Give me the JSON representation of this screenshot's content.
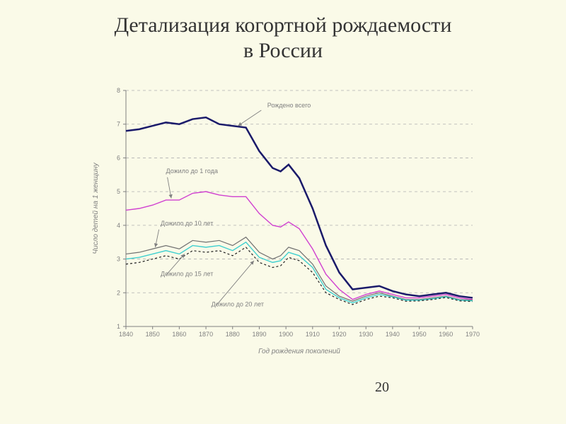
{
  "title_line1": "Детализация когортной рождаемости",
  "title_line2": "в России",
  "page_number": "20",
  "chart": {
    "type": "line",
    "background_color": "#fafae8",
    "plot_bg": "#fafae8",
    "grid_color": "#b0b0b0",
    "axis_color": "#808080",
    "text_color": "#808080",
    "tick_fontsize": 9,
    "label_fontsize": 10,
    "annot_fontsize": 9,
    "x_axis_label": "Год рождения поколений",
    "y_axis_label": "Число детей на 1 женщину",
    "xlim": [
      1840,
      1970
    ],
    "ylim": [
      1,
      8
    ],
    "xticks": [
      1840,
      1850,
      1860,
      1870,
      1880,
      1890,
      1900,
      1910,
      1920,
      1930,
      1940,
      1950,
      1960,
      1970
    ],
    "yticks": [
      1,
      2,
      3,
      4,
      5,
      6,
      7,
      8
    ],
    "series": [
      {
        "name": "Рождено всего",
        "color": "#1a1a6a",
        "width": 2.5,
        "dash": "none",
        "points": [
          [
            1840,
            6.8
          ],
          [
            1845,
            6.85
          ],
          [
            1850,
            6.95
          ],
          [
            1855,
            7.05
          ],
          [
            1860,
            7.0
          ],
          [
            1865,
            7.15
          ],
          [
            1870,
            7.2
          ],
          [
            1875,
            7.0
          ],
          [
            1880,
            6.95
          ],
          [
            1885,
            6.9
          ],
          [
            1890,
            6.2
          ],
          [
            1895,
            5.7
          ],
          [
            1898,
            5.6
          ],
          [
            1901,
            5.8
          ],
          [
            1905,
            5.4
          ],
          [
            1910,
            4.5
          ],
          [
            1915,
            3.4
          ],
          [
            1920,
            2.6
          ],
          [
            1925,
            2.1
          ],
          [
            1930,
            2.15
          ],
          [
            1935,
            2.2
          ],
          [
            1940,
            2.05
          ],
          [
            1945,
            1.95
          ],
          [
            1950,
            1.9
          ],
          [
            1955,
            1.95
          ],
          [
            1960,
            2.0
          ],
          [
            1965,
            1.9
          ],
          [
            1970,
            1.85
          ]
        ]
      },
      {
        "name": "Дожило до 1 года",
        "color": "#d040d0",
        "width": 1.4,
        "dash": "none",
        "points": [
          [
            1840,
            4.45
          ],
          [
            1845,
            4.5
          ],
          [
            1850,
            4.6
          ],
          [
            1855,
            4.75
          ],
          [
            1860,
            4.75
          ],
          [
            1865,
            4.95
          ],
          [
            1870,
            5.0
          ],
          [
            1875,
            4.9
          ],
          [
            1880,
            4.85
          ],
          [
            1885,
            4.85
          ],
          [
            1890,
            4.35
          ],
          [
            1895,
            4.0
          ],
          [
            1898,
            3.95
          ],
          [
            1901,
            4.1
          ],
          [
            1905,
            3.9
          ],
          [
            1910,
            3.3
          ],
          [
            1915,
            2.55
          ],
          [
            1920,
            2.1
          ],
          [
            1925,
            1.8
          ],
          [
            1930,
            1.95
          ],
          [
            1935,
            2.05
          ],
          [
            1940,
            1.95
          ],
          [
            1945,
            1.85
          ],
          [
            1950,
            1.85
          ],
          [
            1955,
            1.9
          ],
          [
            1960,
            1.95
          ],
          [
            1965,
            1.85
          ],
          [
            1970,
            1.8
          ]
        ]
      },
      {
        "name": "Дожило до 10 лет",
        "color": "#707070",
        "width": 1.2,
        "dash": "none",
        "points": [
          [
            1840,
            3.15
          ],
          [
            1845,
            3.2
          ],
          [
            1850,
            3.3
          ],
          [
            1855,
            3.4
          ],
          [
            1860,
            3.3
          ],
          [
            1865,
            3.55
          ],
          [
            1870,
            3.5
          ],
          [
            1875,
            3.55
          ],
          [
            1880,
            3.4
          ],
          [
            1885,
            3.65
          ],
          [
            1890,
            3.2
          ],
          [
            1895,
            3.0
          ],
          [
            1898,
            3.1
          ],
          [
            1901,
            3.35
          ],
          [
            1905,
            3.25
          ],
          [
            1910,
            2.85
          ],
          [
            1915,
            2.2
          ],
          [
            1920,
            1.9
          ],
          [
            1925,
            1.75
          ],
          [
            1930,
            1.9
          ],
          [
            1935,
            2.0
          ],
          [
            1940,
            1.9
          ],
          [
            1945,
            1.8
          ],
          [
            1950,
            1.8
          ],
          [
            1955,
            1.85
          ],
          [
            1960,
            1.9
          ],
          [
            1965,
            1.8
          ],
          [
            1970,
            1.78
          ]
        ]
      },
      {
        "name": "Дожило до 15 лет",
        "color": "#40d0d0",
        "width": 1.4,
        "dash": "none",
        "points": [
          [
            1840,
            3.0
          ],
          [
            1845,
            3.05
          ],
          [
            1850,
            3.15
          ],
          [
            1855,
            3.25
          ],
          [
            1860,
            3.15
          ],
          [
            1865,
            3.4
          ],
          [
            1870,
            3.35
          ],
          [
            1875,
            3.4
          ],
          [
            1880,
            3.25
          ],
          [
            1885,
            3.5
          ],
          [
            1890,
            3.05
          ],
          [
            1895,
            2.9
          ],
          [
            1898,
            2.95
          ],
          [
            1901,
            3.2
          ],
          [
            1905,
            3.1
          ],
          [
            1910,
            2.75
          ],
          [
            1915,
            2.1
          ],
          [
            1920,
            1.85
          ],
          [
            1925,
            1.7
          ],
          [
            1930,
            1.85
          ],
          [
            1935,
            1.95
          ],
          [
            1940,
            1.88
          ],
          [
            1945,
            1.78
          ],
          [
            1950,
            1.78
          ],
          [
            1955,
            1.82
          ],
          [
            1960,
            1.88
          ],
          [
            1965,
            1.78
          ],
          [
            1970,
            1.76
          ]
        ]
      },
      {
        "name": "Дожило до 20 лет",
        "color": "#202020",
        "width": 1.2,
        "dash": "3,3",
        "points": [
          [
            1840,
            2.85
          ],
          [
            1845,
            2.9
          ],
          [
            1850,
            3.0
          ],
          [
            1855,
            3.1
          ],
          [
            1860,
            3.0
          ],
          [
            1865,
            3.25
          ],
          [
            1870,
            3.2
          ],
          [
            1875,
            3.25
          ],
          [
            1880,
            3.1
          ],
          [
            1885,
            3.35
          ],
          [
            1890,
            2.9
          ],
          [
            1895,
            2.75
          ],
          [
            1898,
            2.8
          ],
          [
            1901,
            3.05
          ],
          [
            1905,
            2.95
          ],
          [
            1910,
            2.6
          ],
          [
            1915,
            2.0
          ],
          [
            1920,
            1.8
          ],
          [
            1925,
            1.65
          ],
          [
            1930,
            1.8
          ],
          [
            1935,
            1.9
          ],
          [
            1940,
            1.85
          ],
          [
            1945,
            1.75
          ],
          [
            1950,
            1.76
          ],
          [
            1955,
            1.8
          ],
          [
            1960,
            1.86
          ],
          [
            1965,
            1.76
          ],
          [
            1970,
            1.74
          ]
        ]
      }
    ],
    "annotations": [
      {
        "text": "Рождено всего",
        "tx": 1893,
        "ty": 7.5,
        "ax": 1882,
        "ay": 6.95
      },
      {
        "text": "Дожило до 1 года",
        "tx": 1855,
        "ty": 5.55,
        "ax": 1857,
        "ay": 4.8
      },
      {
        "text": "Дожило до 10 лет",
        "tx": 1853,
        "ty": 4.0,
        "ax": 1851,
        "ay": 3.35
      },
      {
        "text": "Дожило до 15 лет",
        "tx": 1853,
        "ty": 2.5,
        "ax": 1862,
        "ay": 3.15
      },
      {
        "text": "Дожило до 20 лет",
        "tx": 1872,
        "ty": 1.6,
        "ax": 1888,
        "ay": 2.95
      }
    ]
  }
}
